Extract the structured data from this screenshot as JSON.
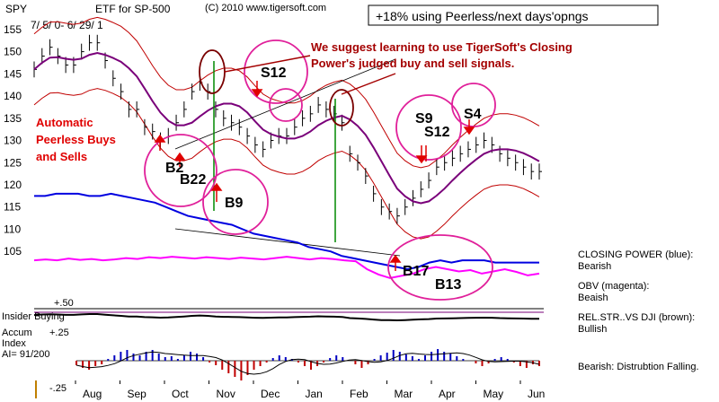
{
  "chart_data": {
    "type": "line",
    "ticker": "SPY",
    "title": "ETF for SP-500",
    "date_range": "7/ 5/ 0- 6/ 29/ 1",
    "copyright": "(C) 2010 www.tigersoft.com",
    "headline": "+18% using Peerless/next days'opngs",
    "y_ticks": [
      "155",
      "150",
      "145",
      "140",
      "135",
      "130",
      "125",
      "120",
      "115",
      "110",
      "105"
    ],
    "ylim": [
      101,
      158
    ],
    "months": [
      "Aug",
      "Sep",
      "Oct",
      "Nov",
      "Dec",
      "Jan",
      "Feb",
      "Mar",
      "Apr",
      "May",
      "Jun"
    ],
    "series": [
      {
        "name": "SPY",
        "values": [
          146,
          149,
          151,
          149,
          147,
          147,
          150,
          152,
          152,
          148,
          144,
          141,
          137,
          137,
          133,
          132,
          130,
          131,
          134,
          137,
          141,
          143,
          141,
          137,
          135,
          134,
          133,
          131,
          129,
          128,
          130,
          131,
          131,
          133,
          135,
          136,
          138,
          137,
          136,
          134,
          127,
          125,
          122,
          118,
          115,
          114,
          113,
          115,
          117,
          119,
          121,
          124,
          125,
          126,
          127,
          128,
          129,
          130,
          129,
          127,
          126,
          125,
          124,
          123,
          123
        ]
      },
      {
        "name": "CLOSING POWER (blue)",
        "values": [
          117.5,
          117.5,
          118,
          118,
          118,
          117.5,
          117.5,
          118,
          117.5,
          117,
          116.5,
          116,
          115,
          114,
          113,
          112.5,
          112,
          111.5,
          111,
          110,
          109,
          108.5,
          108,
          107.5,
          107,
          106,
          105.5,
          105,
          104,
          103.5,
          103,
          102.5,
          102,
          101.5,
          101,
          101.5,
          102.5,
          103,
          102.5,
          103,
          103,
          103,
          102.5,
          102.5,
          102.5,
          102.5,
          102.5
        ]
      },
      {
        "name": "OBV (magenta)",
        "values": [
          103,
          103.2,
          103,
          103.4,
          103.1,
          103.3,
          103,
          103.2,
          103.5,
          103.3,
          103.7,
          103.5,
          103.8,
          103.6,
          103.4,
          103.7,
          103.5,
          103.3,
          103.6,
          103.4,
          103.2,
          103.5,
          103.8,
          103.5,
          103.2,
          103.5,
          103.3,
          103,
          102.8,
          101,
          99.8,
          99,
          99.5,
          100,
          101,
          101.5,
          101,
          100.5,
          100.8,
          100,
          100.5,
          101,
          100.4,
          99.6,
          100
        ]
      }
    ],
    "signals": [
      "B2",
      "B22",
      "B9",
      "S12",
      "S9",
      "S12",
      "S4",
      "B17",
      "B13"
    ],
    "red_note": [
      "Automatic",
      "Peerless Buys",
      "and Sells"
    ],
    "promo": [
      "We suggest learning to use TigerSoft's Closing",
      "Power's judged buy and sell signals."
    ],
    "legend_notes": [
      {
        "label": "CLOSING POWER (blue):",
        "value": "Bearish"
      },
      {
        "label": "OBV (magenta):",
        "value": "Beaish"
      },
      {
        "label": "REL.STR..VS DJI (brown):",
        "value": "Bullish"
      }
    ],
    "bottom_note": "Bearish: Distrubtion Falling.",
    "insider_label": "Insider Buying",
    "insider_level": "+.50",
    "accum": {
      "label_lines": [
        "Accum",
        "Index",
        "AI= 91/200"
      ],
      "upper": "+.25",
      "lower": "-.25",
      "values": [
        -0.05,
        -0.08,
        -0.1,
        -0.06,
        -0.04,
        0.02,
        0.06,
        0.1,
        0.12,
        0.08,
        0.06,
        0.1,
        0.12,
        0.08,
        0.04,
        0.05,
        0.02,
        0.06,
        0.1,
        0.08,
        0.04,
        -0.02,
        -0.05,
        -0.1,
        -0.14,
        -0.18,
        -0.22,
        -0.16,
        -0.1,
        -0.06,
        -0.02,
        0.03,
        0.06,
        0.04,
        0.02,
        -0.02,
        -0.06,
        -0.1,
        -0.06,
        -0.02,
        0.03,
        0.06,
        0.04,
        0.0,
        -0.04,
        -0.08,
        -0.04,
        0.02,
        0.06,
        0.09,
        0.12,
        0.1,
        0.07,
        0.05,
        0.02,
        0.06,
        0.1,
        0.13,
        0.1,
        0.08,
        0.05,
        0.02,
        0.0,
        -0.03,
        -0.06,
        -0.03,
        0.02,
        0.04,
        0.02,
        -0.02,
        -0.06,
        -0.08,
        -0.04,
        -0.06
      ]
    }
  },
  "colors": {
    "price": "#000000",
    "band": "#c00000",
    "ma": "#7a007a",
    "closing_power": "#0000e0",
    "obv": "#ff00ff",
    "circle": "#e0209a",
    "promo": "#a40000",
    "green": "#008800",
    "accum_up": "#0000c0",
    "accum_down": "#c00000"
  }
}
